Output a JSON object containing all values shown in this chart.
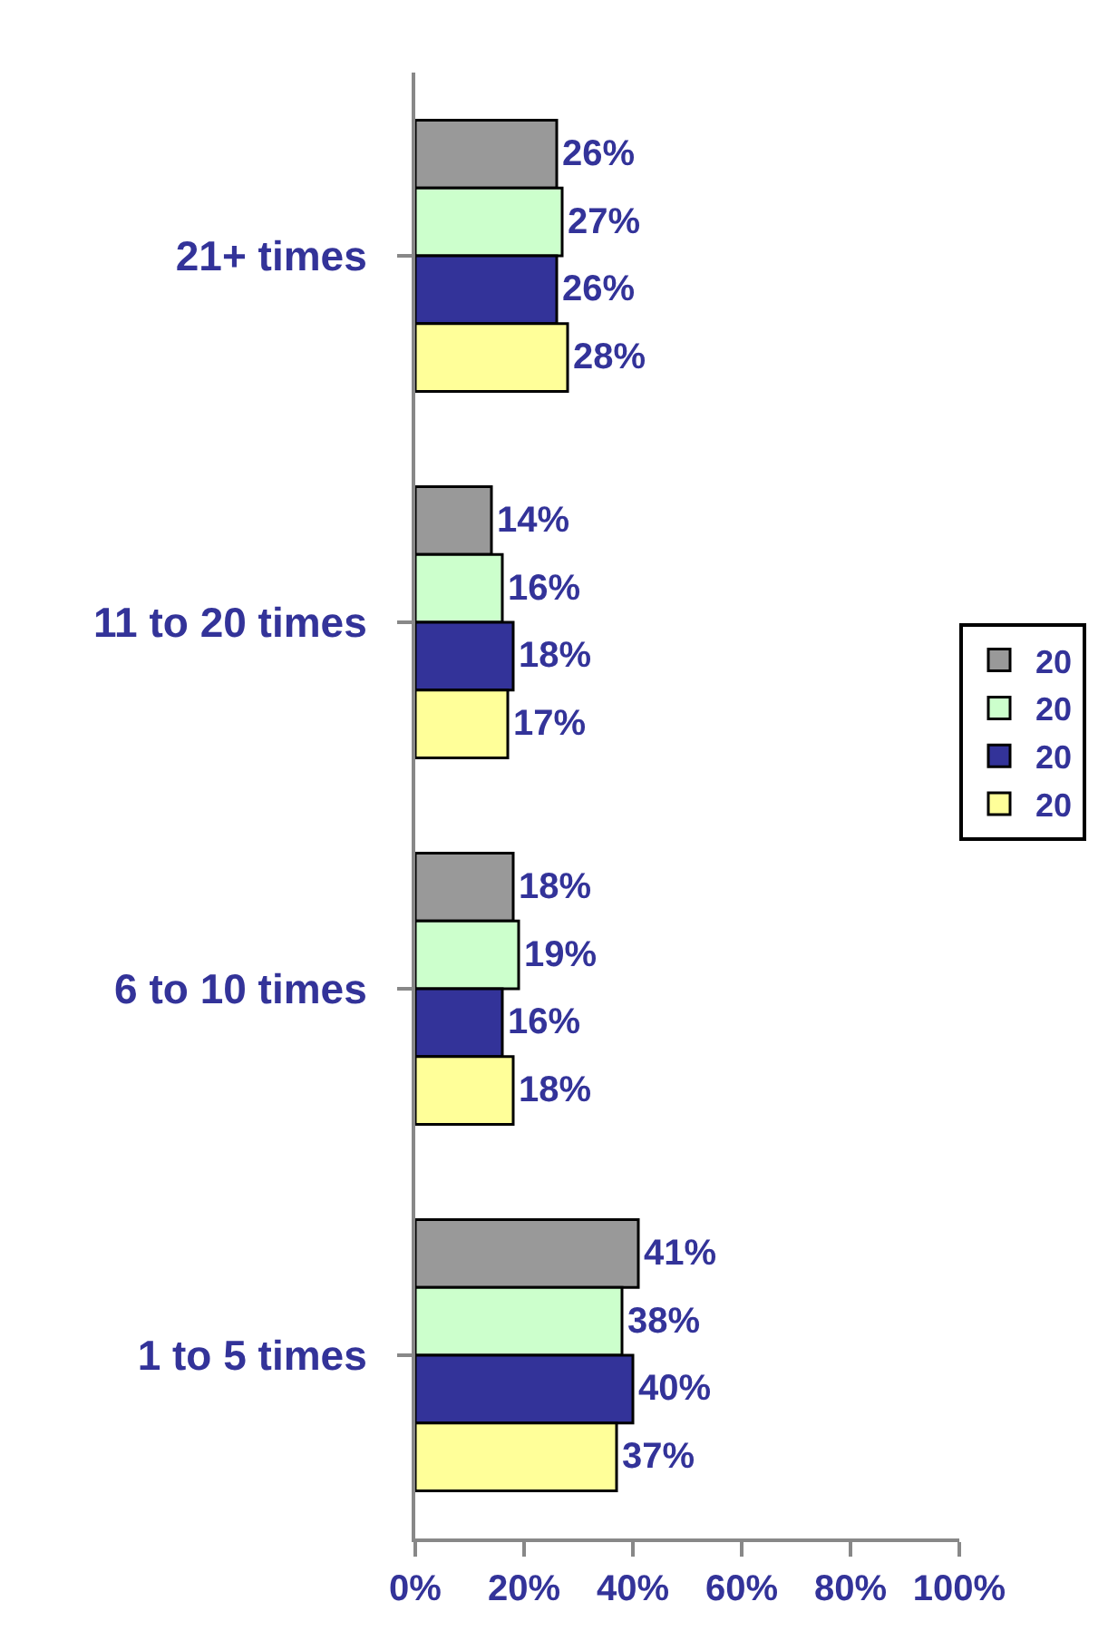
{
  "chart_data": {
    "type": "bar",
    "orientation": "horizontal",
    "categories": [
      "21+ times",
      "11 to 20 times",
      "6 to 10 times",
      "1 to 5 times"
    ],
    "series": [
      {
        "name": "20",
        "color": "#999999",
        "values": [
          26,
          14,
          18,
          41
        ],
        "value_labels": [
          "26%",
          "14%",
          "18%",
          "41%"
        ]
      },
      {
        "name": "20",
        "color": "#ccffcc",
        "values": [
          27,
          16,
          19,
          38
        ],
        "value_labels": [
          "27%",
          "16%",
          "19%",
          "38%"
        ]
      },
      {
        "name": "20",
        "color": "#333399",
        "values": [
          26,
          18,
          16,
          40
        ],
        "value_labels": [
          "26%",
          "18%",
          "16%",
          "40%"
        ]
      },
      {
        "name": "20",
        "color": "#ffff99",
        "values": [
          28,
          17,
          18,
          37
        ],
        "value_labels": [
          "28%",
          "17%",
          "18%",
          "37%"
        ]
      }
    ],
    "xlim": [
      0,
      100
    ],
    "xticks": [
      {
        "value": 0,
        "label": "0%"
      },
      {
        "value": 20,
        "label": "20%"
      },
      {
        "value": 40,
        "label": "40%"
      },
      {
        "value": 60,
        "label": "60%"
      },
      {
        "value": 80,
        "label": "80%"
      },
      {
        "value": 100,
        "label": "100%"
      }
    ],
    "legend": "right"
  }
}
